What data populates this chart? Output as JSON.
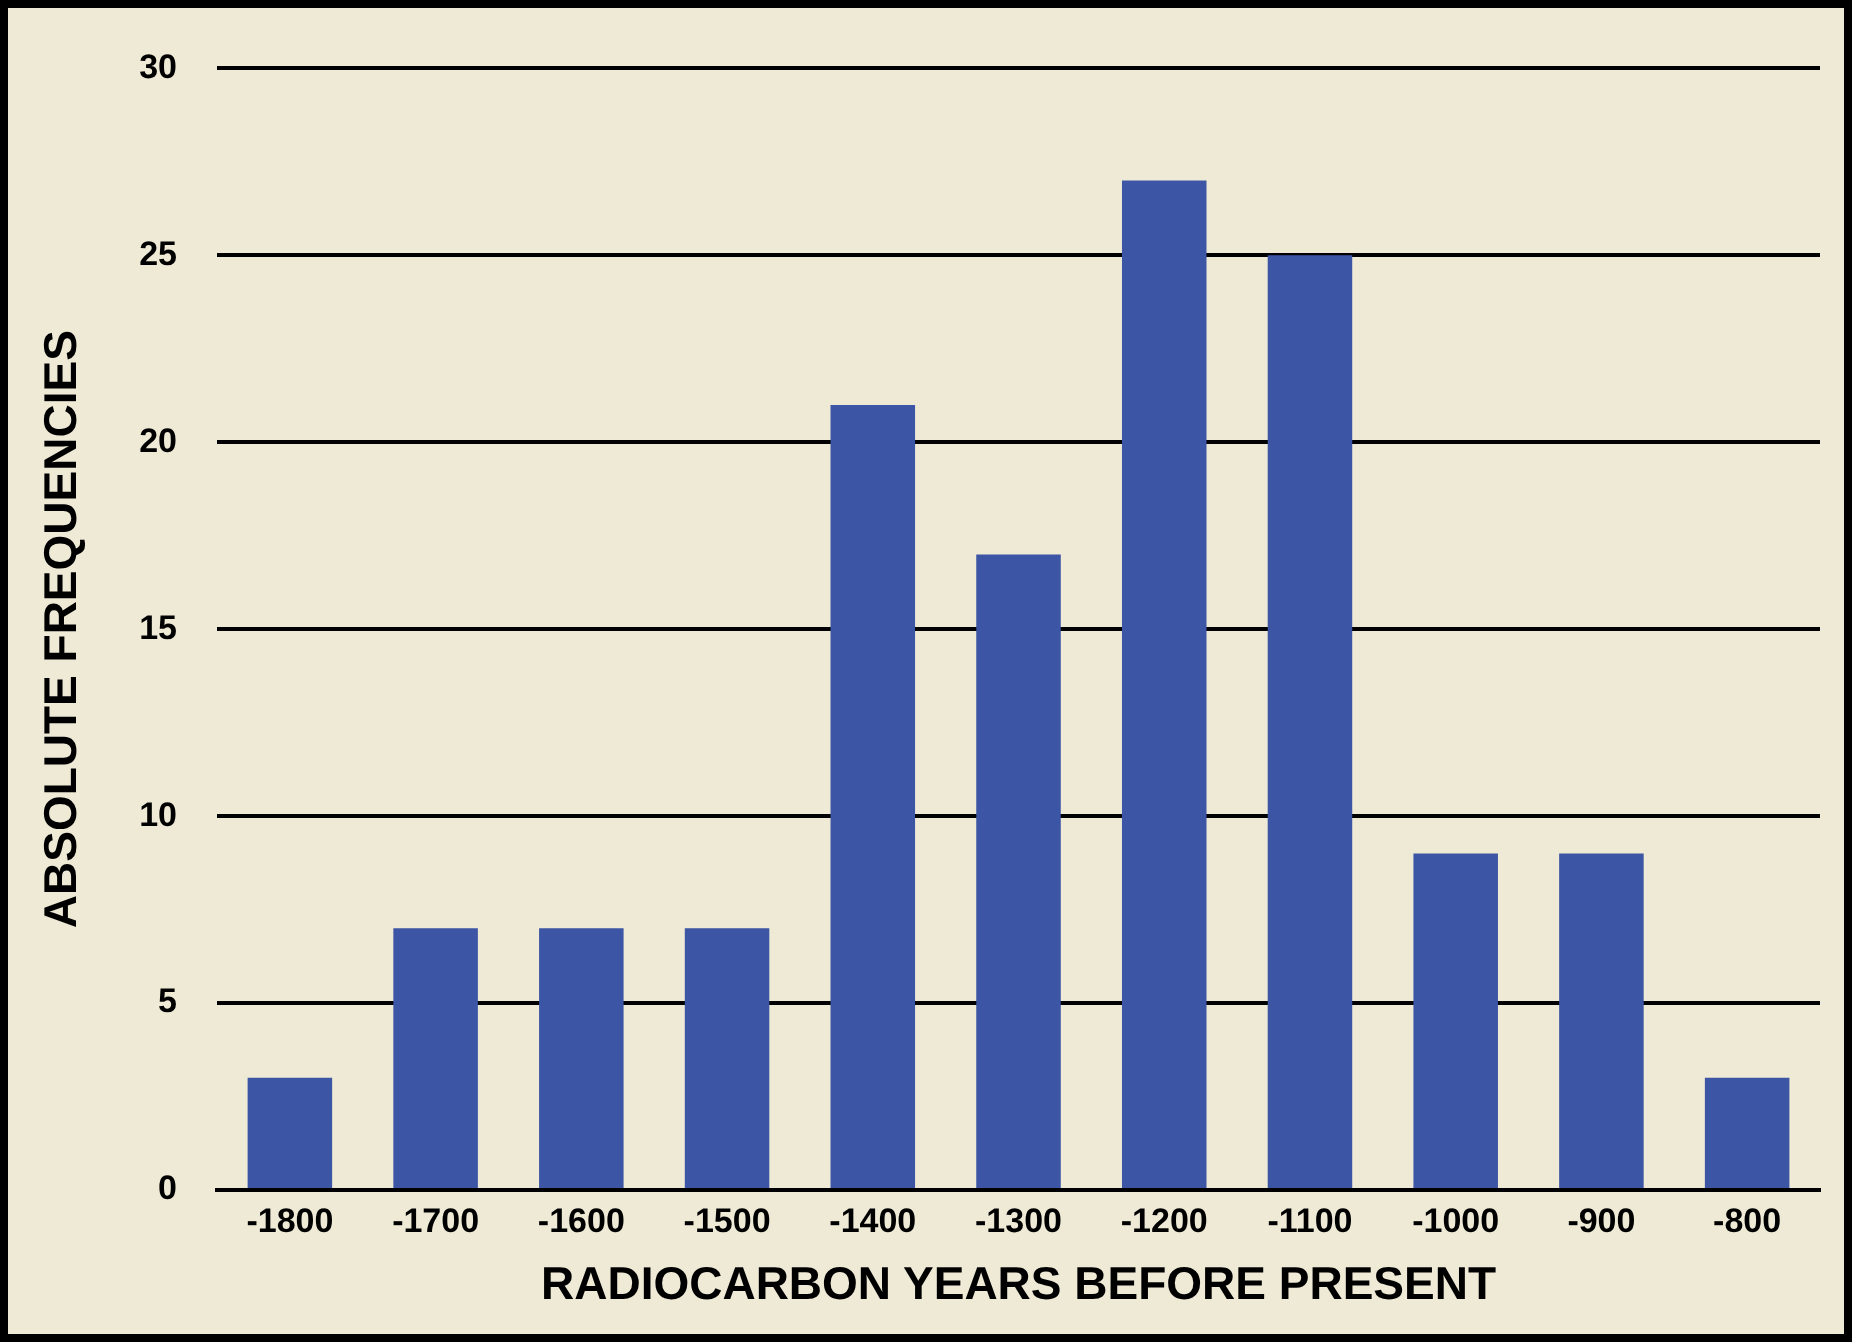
{
  "chart_data": {
    "type": "bar",
    "xlabel": "RADIOCARBON YEARS BEFORE PRESENT",
    "ylabel": "ABSOLUTE FREQUENCIES",
    "categories": [
      "-1800",
      "-1700",
      "-1600",
      "-1500",
      "-1400",
      "-1300",
      "-1200",
      "-1100",
      "-1000",
      "-900",
      "-800"
    ],
    "values": [
      3,
      7,
      7,
      7,
      21,
      17,
      27,
      25,
      9,
      9,
      3
    ],
    "color": "#3c55a5",
    "ylim": [
      0,
      30
    ],
    "yticks": [
      0,
      5,
      10,
      15,
      20,
      25,
      30
    ],
    "grid": "y",
    "legend": false
  }
}
